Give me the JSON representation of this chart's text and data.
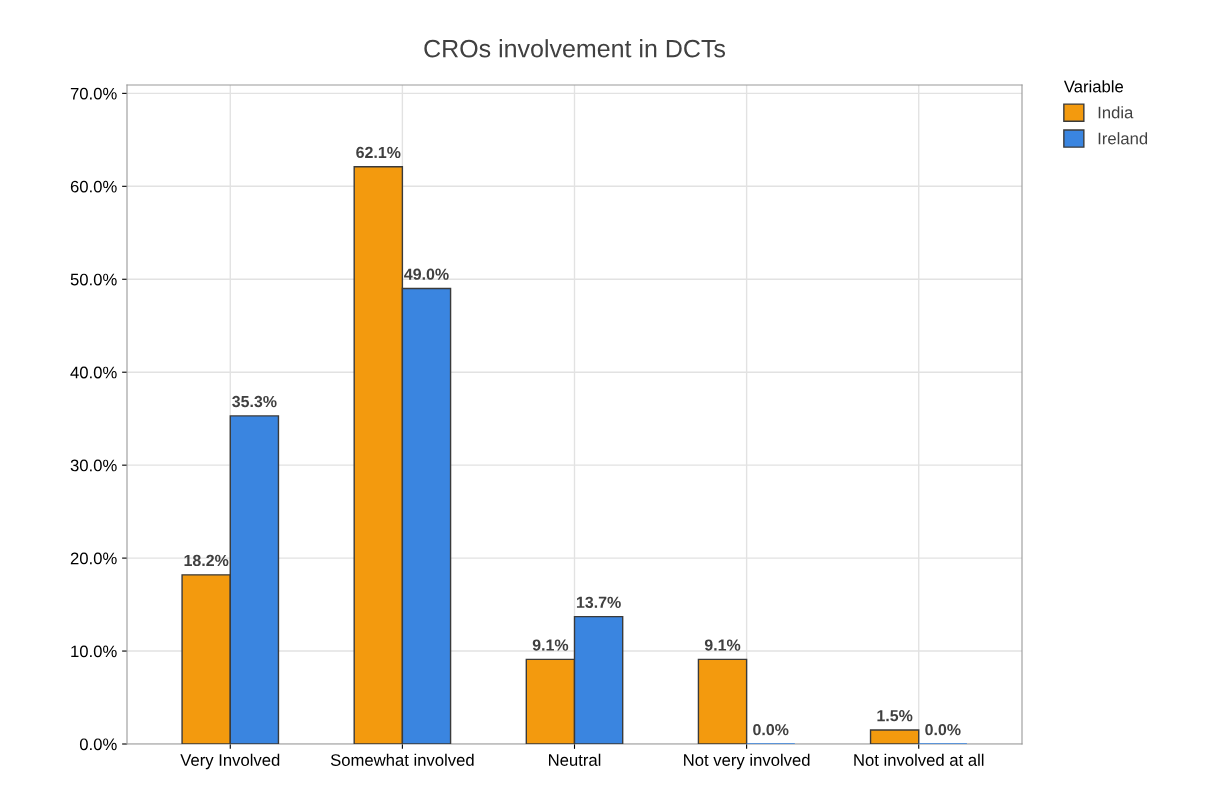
{
  "chart_data": {
    "type": "bar",
    "title": "CROs involvement in DCTs",
    "categories": [
      "Very Involved",
      "Somewhat involved",
      "Neutral",
      "Not very involved",
      "Not involved at all"
    ],
    "series": [
      {
        "name": "India",
        "color": "#f39a0e",
        "values": [
          18.2,
          62.1,
          9.1,
          9.1,
          1.5
        ],
        "value_labels": [
          "18.2%",
          "62.1%",
          "9.1%",
          "9.1%",
          "1.5%"
        ]
      },
      {
        "name": "Ireland",
        "color": "#3a85e0",
        "values": [
          35.3,
          49.0,
          13.7,
          0.0,
          0.0
        ],
        "value_labels": [
          "35.3%",
          "49.0%",
          "13.7%",
          "0.0%",
          "0.0%"
        ]
      }
    ],
    "legend_title": "Variable",
    "legend": "top right",
    "ylim": [
      0,
      70.9
    ],
    "yticks": [
      {
        "value": 0,
        "label": "0.0%"
      },
      {
        "value": 10,
        "label": "10.0%"
      },
      {
        "value": 20,
        "label": "20.0%"
      },
      {
        "value": 30,
        "label": "30.0%"
      },
      {
        "value": 40,
        "label": "40.0%"
      },
      {
        "value": 50,
        "label": "50.0%"
      },
      {
        "value": 60,
        "label": "60.0%"
      },
      {
        "value": 70,
        "label": "70.0%"
      }
    ],
    "grid": true
  }
}
